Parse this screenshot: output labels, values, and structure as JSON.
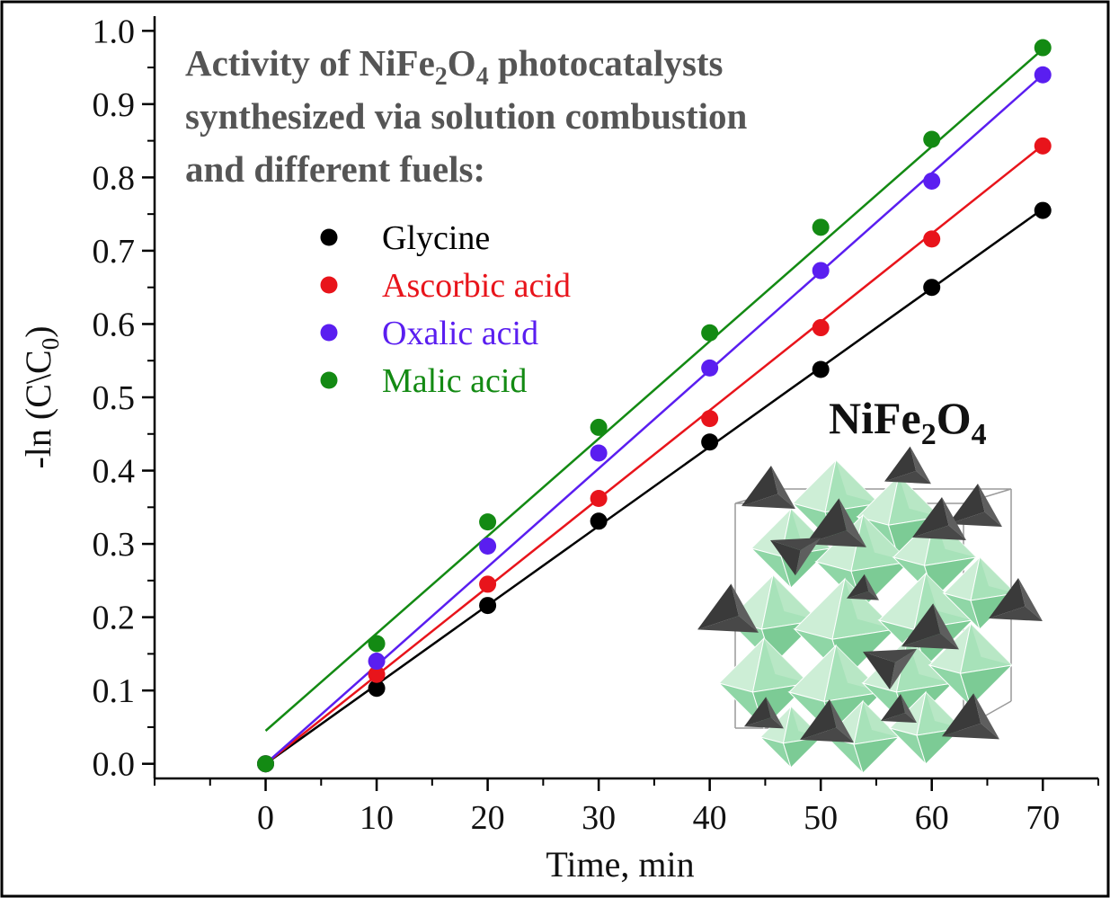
{
  "chart_data": {
    "type": "scatter",
    "title_lines": [
      {
        "pre": "Activity of NiFe",
        "sub1": "2",
        "mid": "O",
        "sub2": "4",
        "post": " photocatalysts"
      },
      {
        "text": "synthesized via solution combustion"
      },
      {
        "text": "and different fuels:"
      }
    ],
    "xlabel": "Time, min",
    "ylabel_main": "-ln (C\\C",
    "ylabel_sub": "0",
    "ylabel_close": ")",
    "xlim": [
      -10,
      75
    ],
    "ylim": [
      -0.02,
      1.02
    ],
    "xticks": [
      "0",
      "10",
      "20",
      "30",
      "40",
      "50",
      "60",
      "70"
    ],
    "yticks": [
      "0.0",
      "0.1",
      "0.2",
      "0.3",
      "0.4",
      "0.5",
      "0.6",
      "0.7",
      "0.8",
      "0.9",
      "1.0"
    ],
    "x": [
      0,
      10,
      20,
      30,
      40,
      50,
      60,
      70
    ],
    "series": [
      {
        "name": "Glycine",
        "color": "#000000",
        "values": [
          0.0,
          0.103,
          0.216,
          0.331,
          0.439,
          0.538,
          0.65,
          0.755
        ],
        "fit": [
          0.0,
          0.757
        ]
      },
      {
        "name": "Ascorbic acid",
        "color": "#e8141b",
        "values": [
          0.0,
          0.122,
          0.245,
          0.362,
          0.471,
          0.595,
          0.716,
          0.843
        ],
        "fit": [
          0.0,
          0.844
        ]
      },
      {
        "name": "Oxalic acid",
        "color": "#5a1ef0",
        "values": [
          0.0,
          0.14,
          0.297,
          0.424,
          0.54,
          0.673,
          0.795,
          0.94
        ],
        "fit": [
          0.0,
          0.94
        ]
      },
      {
        "name": "Malic acid",
        "color": "#138a13",
        "values": [
          0.0,
          0.164,
          0.33,
          0.459,
          0.588,
          0.732,
          0.852,
          0.977
        ],
        "fit": [
          0.045,
          0.975
        ]
      }
    ]
  },
  "inset": {
    "label_pre": "NiFe",
    "label_sub1": "2",
    "label_mid": "O",
    "label_sub2": "4",
    "octahedra_color": "#8fd6a6",
    "tetrahedra_color": "#4a4a4a"
  }
}
